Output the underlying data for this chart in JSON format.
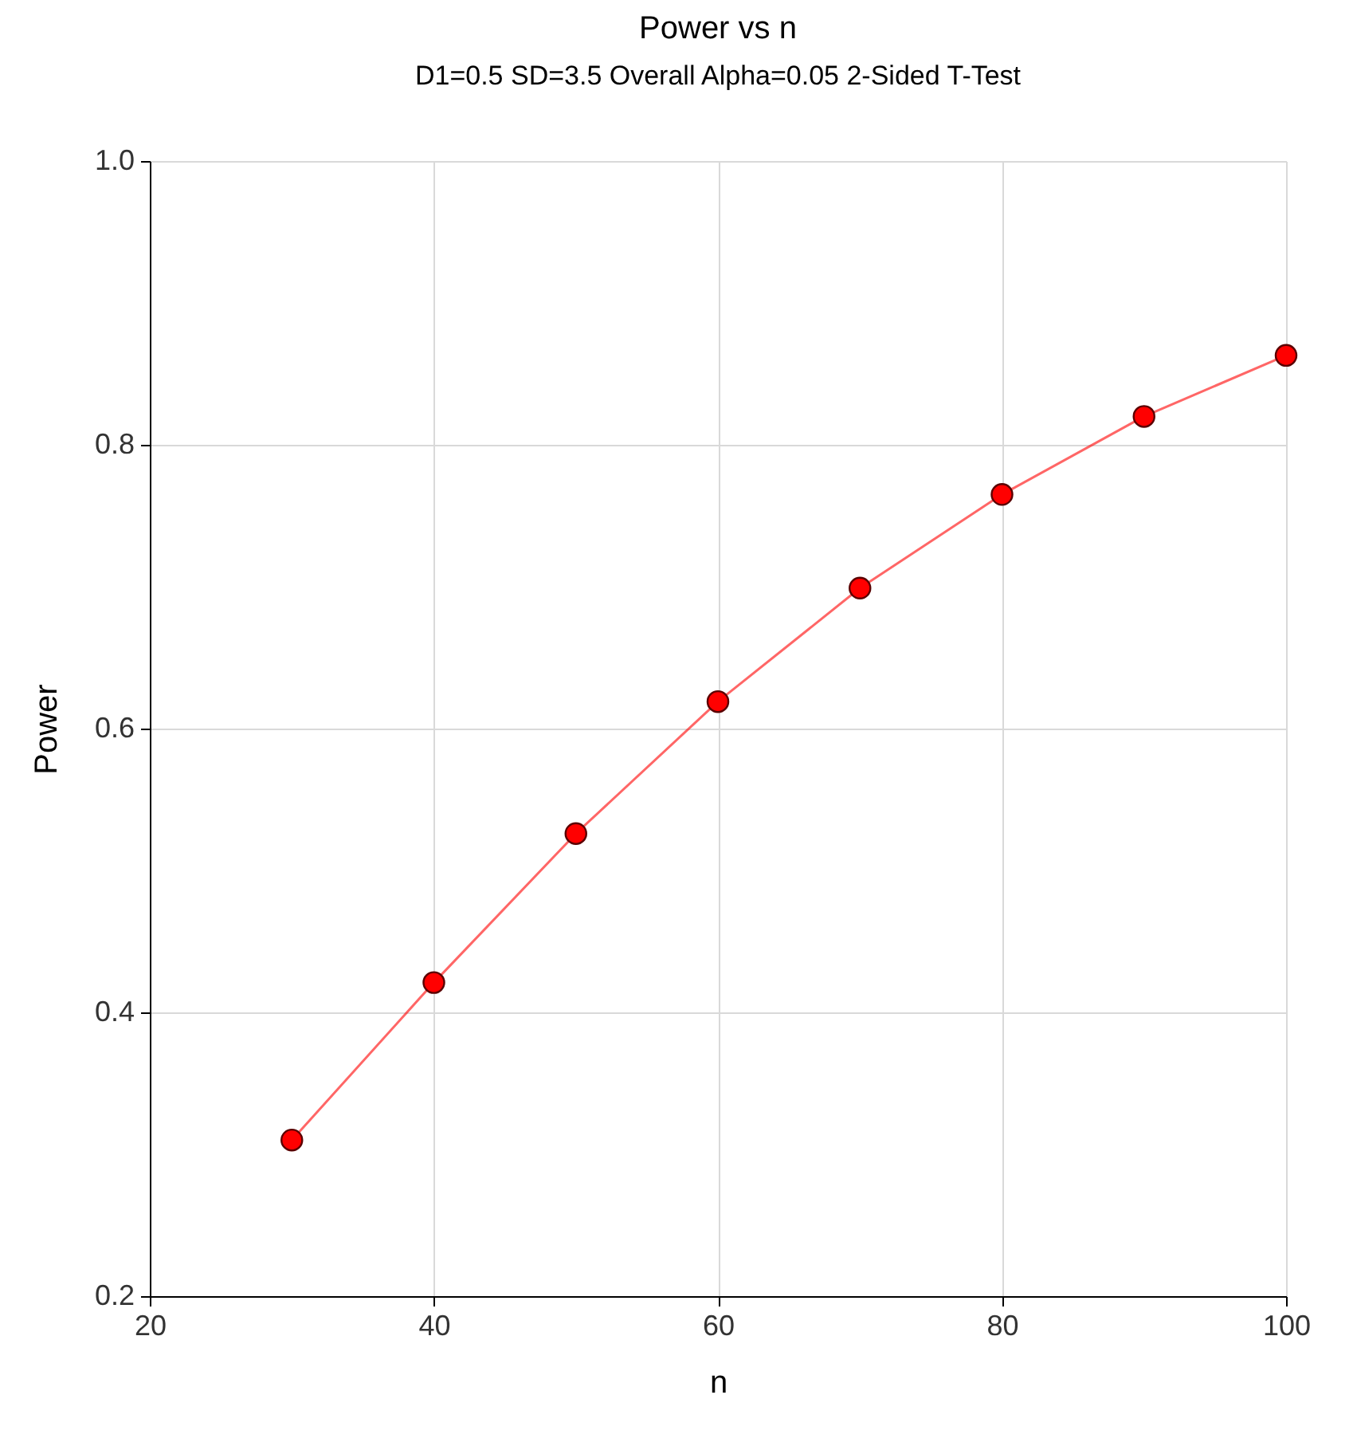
{
  "chart_data": {
    "type": "line",
    "title": "Power vs n",
    "subtitle": "D1=0.5 SD=3.5 Overall Alpha=0.05 2-Sided T-Test",
    "xlabel": "n",
    "ylabel": "Power",
    "x": [
      30,
      40,
      50,
      60,
      70,
      80,
      90,
      100
    ],
    "series": [
      {
        "color": "#ff0000",
        "values": [
          0.31,
          0.421,
          0.526,
          0.619,
          0.699,
          0.765,
          0.82,
          0.863
        ]
      }
    ],
    "xlim": [
      20,
      100
    ],
    "xticks": [
      20,
      40,
      60,
      80,
      100
    ],
    "ylim": [
      0.2,
      1.0
    ],
    "yticks": [
      0.2,
      0.4,
      0.6,
      0.8,
      {
        "value": 1.0,
        "label": "1.0"
      }
    ],
    "grid": true,
    "marker": "circle",
    "line_style": "solid"
  }
}
